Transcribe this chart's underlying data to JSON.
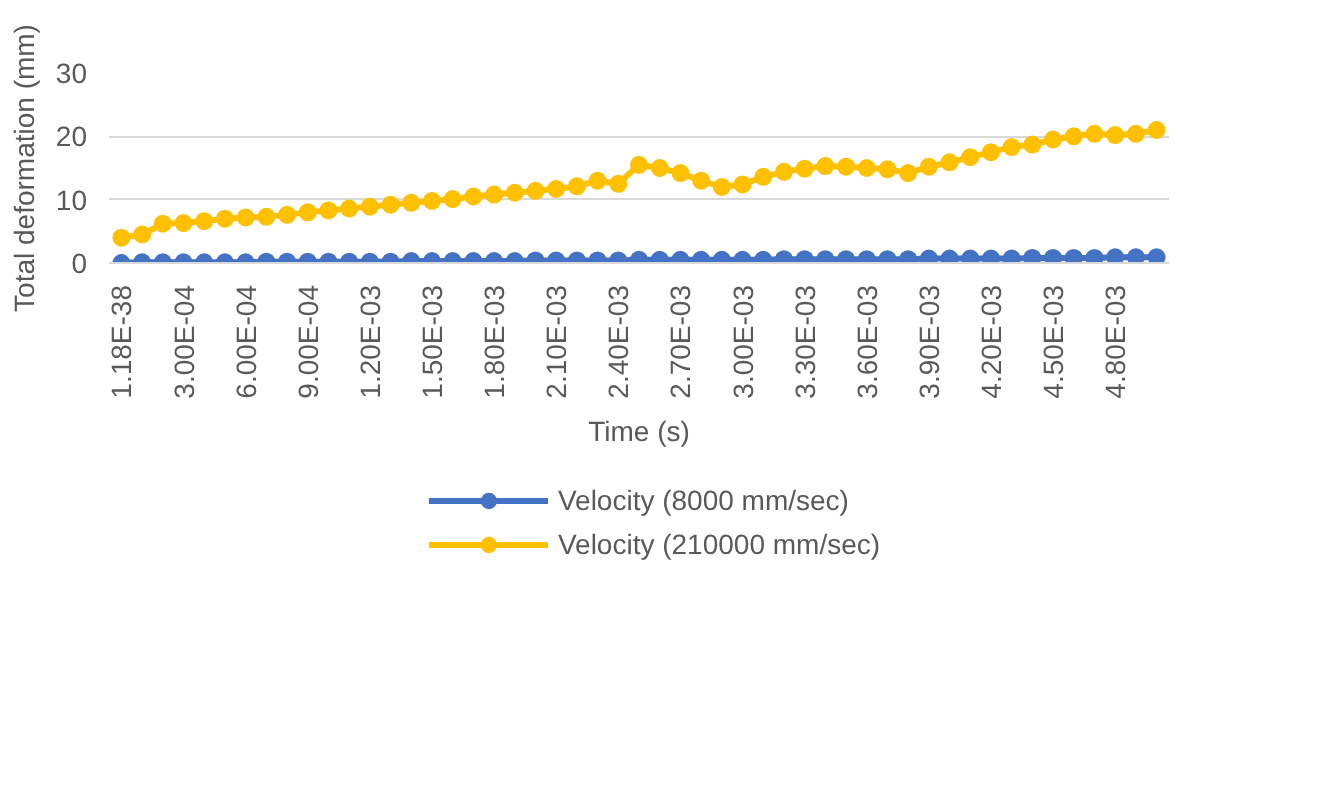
{
  "chart_data": {
    "type": "line",
    "xlabel": "Time (s)",
    "ylabel": "Total deformation (mm)",
    "categories": [
      "1.18E-38",
      null,
      null,
      "3.00E-04",
      null,
      null,
      "6.00E-04",
      null,
      null,
      "9.00E-04",
      null,
      null,
      "1.20E-03",
      null,
      null,
      "1.50E-03",
      null,
      null,
      "1.80E-03",
      null,
      null,
      "2.10E-03",
      null,
      null,
      "2.40E-03",
      null,
      null,
      "2.70E-03",
      null,
      null,
      "3.00E-03",
      null,
      null,
      "3.30E-03",
      null,
      null,
      "3.60E-03",
      null,
      null,
      "3.90E-03",
      null,
      null,
      "4.20E-03",
      null,
      null,
      "4.50E-03",
      null,
      null,
      "4.80E-03",
      null,
      null
    ],
    "series": [
      {
        "name": "Velocity (8000 mm/sec)",
        "color": "#4472c4",
        "values": [
          0.0,
          0.1,
          0.1,
          0.1,
          0.1,
          0.1,
          0.1,
          0.2,
          0.2,
          0.2,
          0.2,
          0.2,
          0.2,
          0.2,
          0.3,
          0.3,
          0.3,
          0.3,
          0.3,
          0.3,
          0.4,
          0.4,
          0.4,
          0.4,
          0.4,
          0.5,
          0.5,
          0.5,
          0.5,
          0.5,
          0.5,
          0.5,
          0.6,
          0.6,
          0.6,
          0.6,
          0.6,
          0.6,
          0.6,
          0.7,
          0.7,
          0.7,
          0.7,
          0.7,
          0.8,
          0.8,
          0.8,
          0.8,
          0.9,
          0.9,
          0.9
        ]
      },
      {
        "name": "Velocity (210000 mm/sec)",
        "color": "#ffc000",
        "values": [
          4.0,
          4.5,
          6.2,
          6.3,
          6.6,
          7.0,
          7.2,
          7.3,
          7.6,
          8.0,
          8.3,
          8.6,
          8.9,
          9.2,
          9.5,
          9.8,
          10.1,
          10.5,
          10.8,
          11.1,
          11.4,
          11.7,
          12.1,
          13.0,
          12.5,
          15.5,
          15.0,
          14.2,
          13.0,
          12.0,
          12.4,
          13.6,
          14.4,
          14.9,
          15.3,
          15.2,
          15.0,
          14.8,
          14.2,
          15.2,
          15.9,
          16.7,
          17.5,
          18.3,
          18.7,
          19.5,
          20.0,
          20.4,
          20.2,
          20.4,
          21.0
        ]
      }
    ],
    "ylim": [
      0,
      30
    ],
    "yticks": [
      0,
      10,
      20,
      30
    ],
    "grid": "y",
    "legend": "bottom",
    "marker": "circle",
    "line_style": "solid"
  }
}
